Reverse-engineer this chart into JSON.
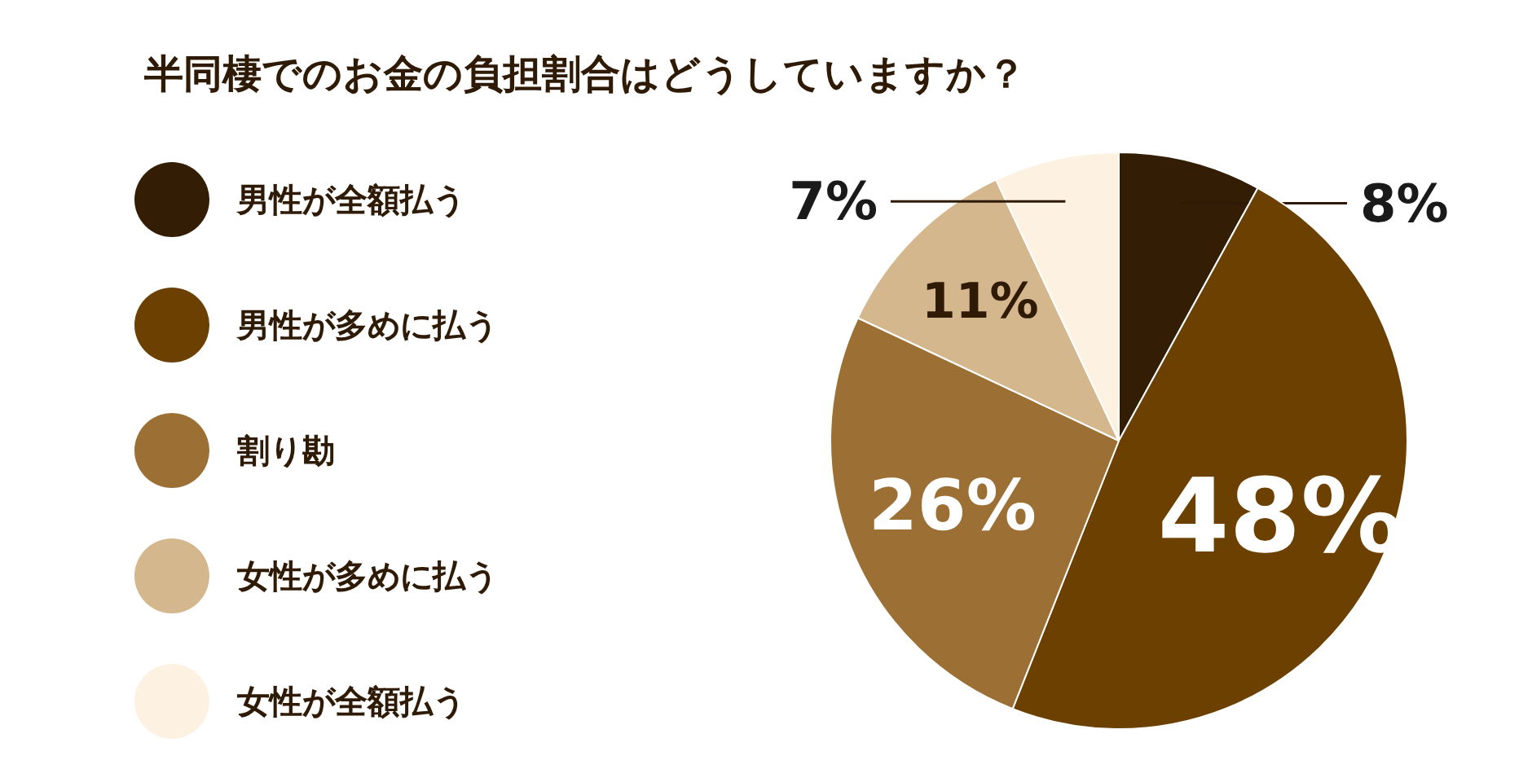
{
  "chart_data": {
    "type": "pie",
    "title": "半同棲でのお金の負担割合はどうしていますか？",
    "categories": [
      "男性が全額払う",
      "男性が多めに払う",
      "割り勘",
      "女性が多めに払う",
      "女性が全額払う"
    ],
    "values": [
      8,
      48,
      26,
      11,
      7
    ],
    "colors": [
      "#331d04",
      "#6b4000",
      "#9c6f34",
      "#d5b78e",
      "#fdf1e2"
    ],
    "value_labels": [
      "8%",
      "48%",
      "26%",
      "11%",
      "7%"
    ],
    "legend": "left"
  }
}
